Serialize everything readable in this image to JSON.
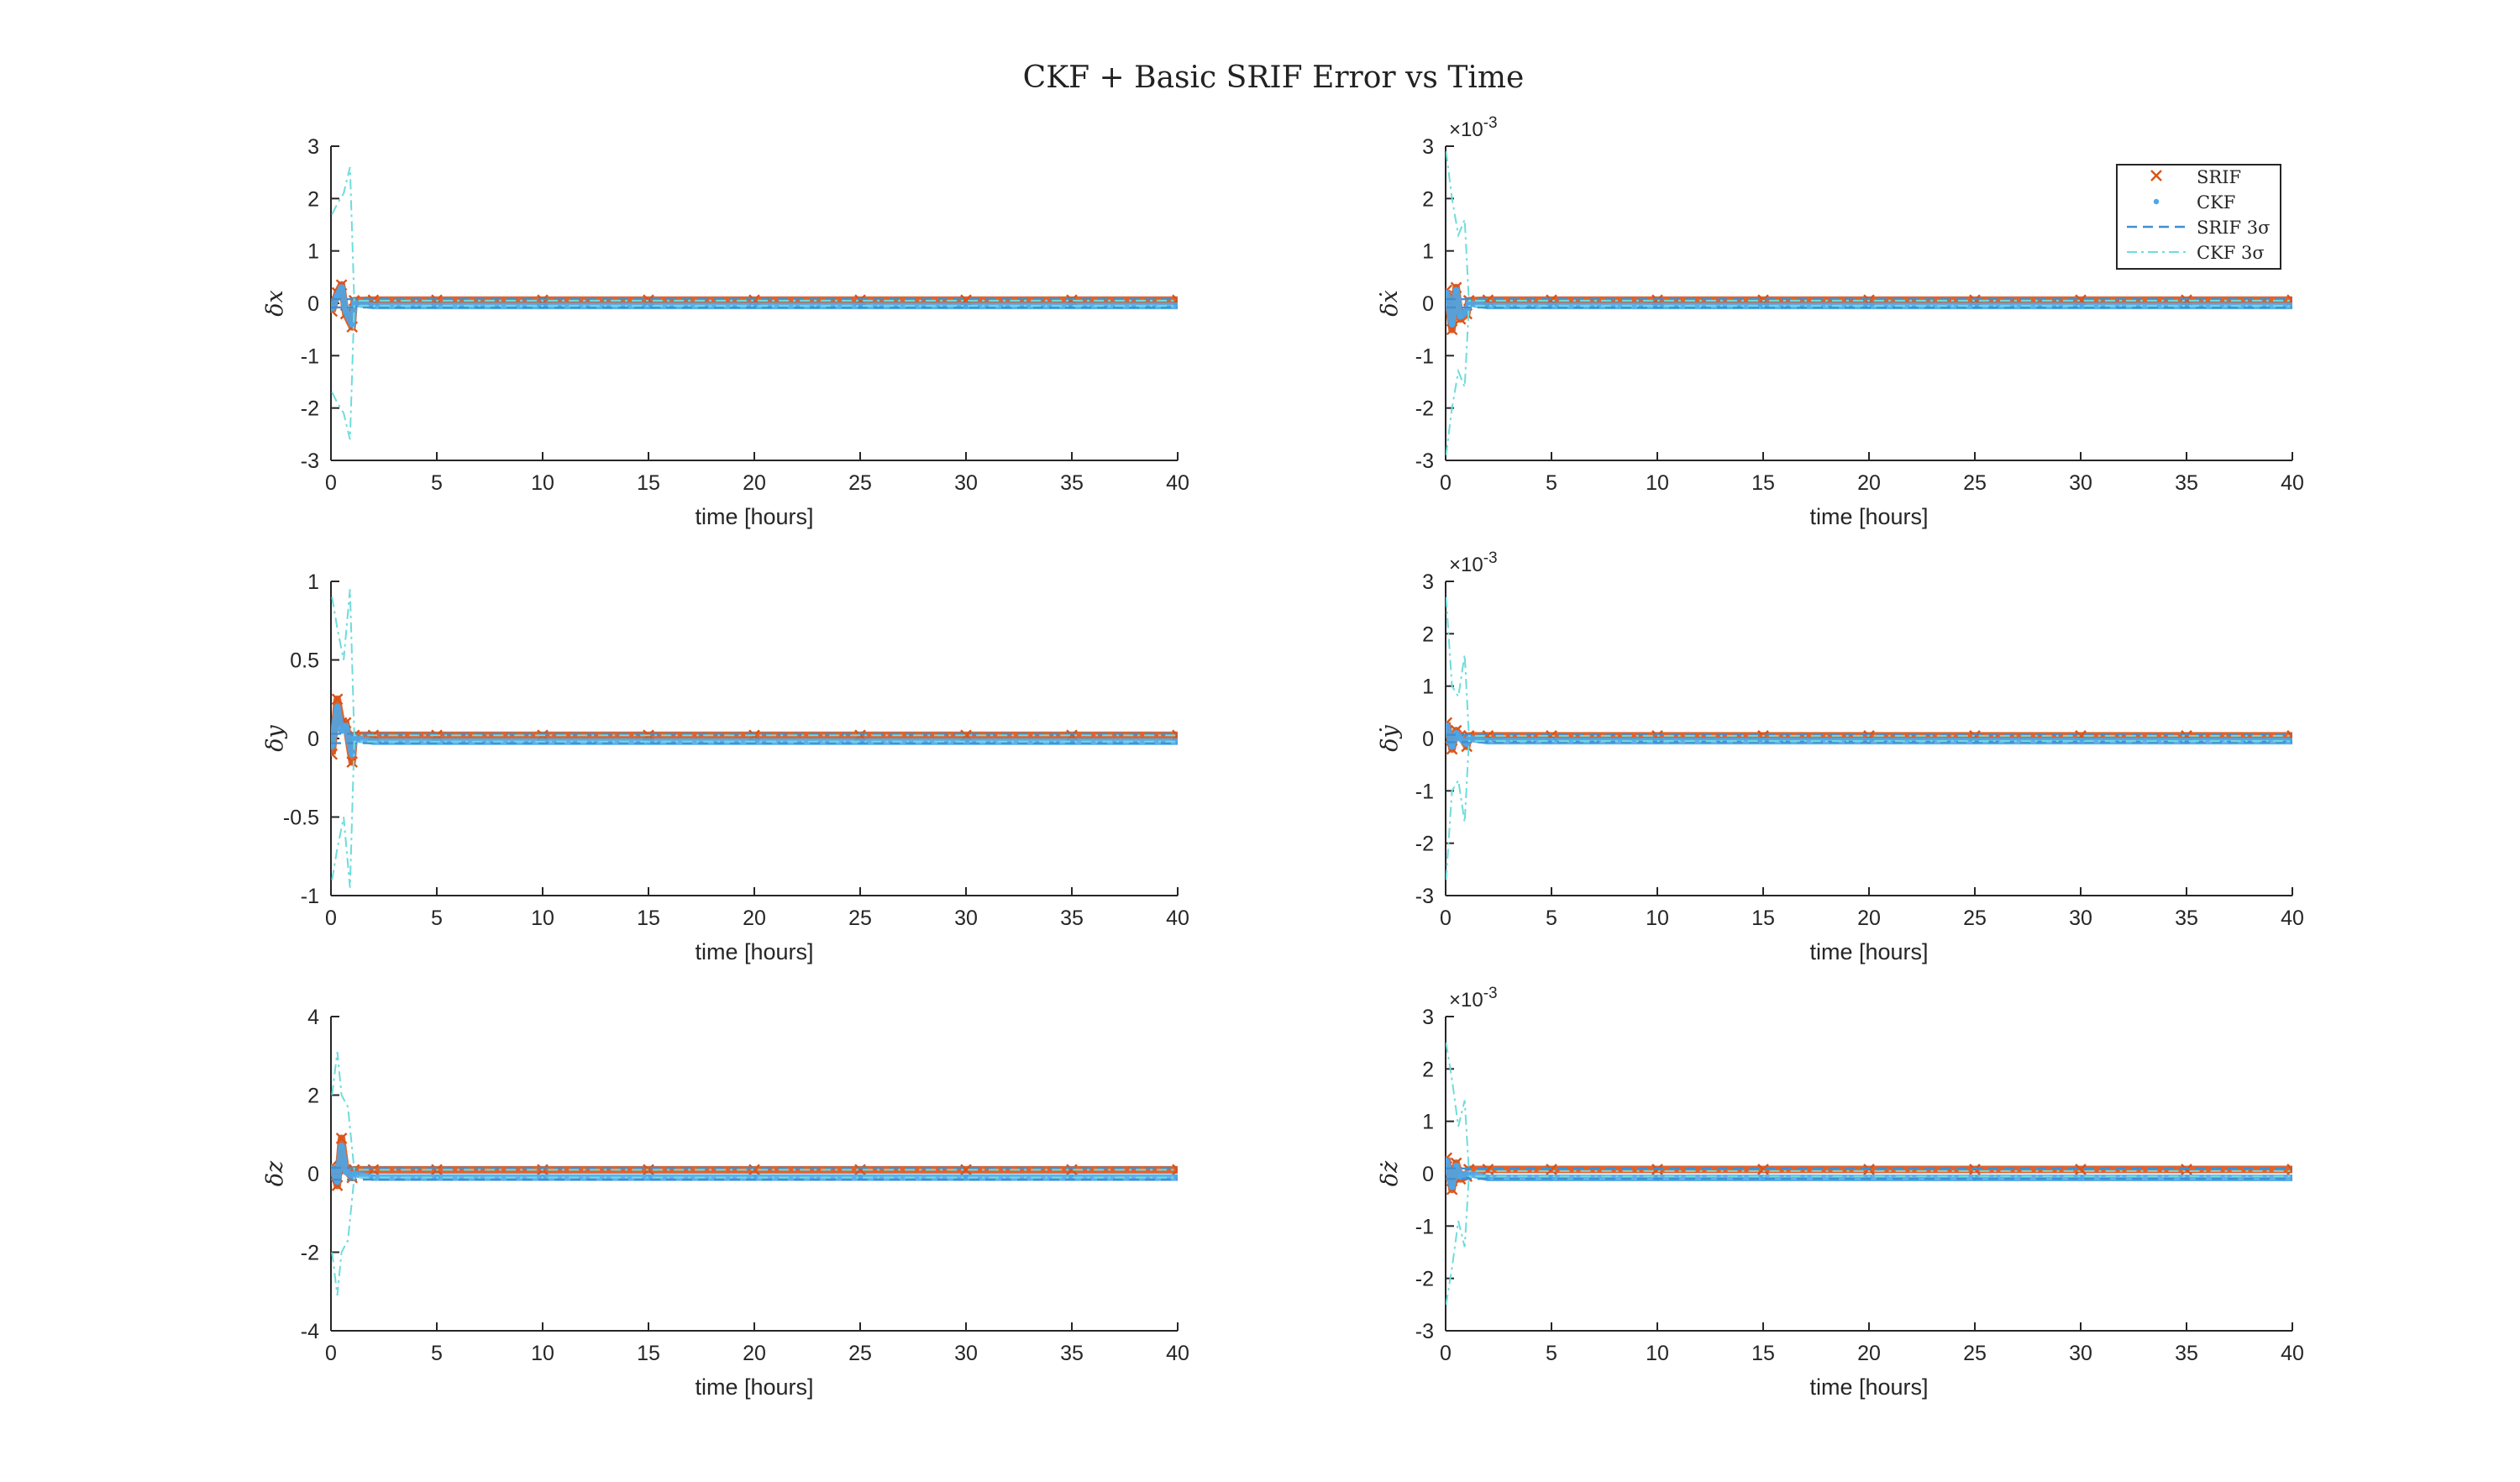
{
  "figure": {
    "title": "CKF + Basic SRIF Error vs Time"
  },
  "legend": {
    "entries": [
      {
        "label": "SRIF",
        "marker": "x",
        "color": "#D95319"
      },
      {
        "label": "CKF",
        "marker": "dot",
        "color": "#4DA6E8"
      },
      {
        "label": "SRIF 3σ",
        "line": "dashed",
        "color": "#3F8FD2"
      },
      {
        "label": "CKF 3σ",
        "line": "dash-dot",
        "color": "#6FDCDC"
      }
    ]
  },
  "chart_data": [
    {
      "type": "scatter",
      "ylabel": "δx",
      "xlabel": "time [hours]",
      "xlim": [
        0,
        40
      ],
      "ylim": [
        -3,
        3
      ],
      "xticks": [
        "0",
        "5",
        "10",
        "15",
        "20",
        "25",
        "30",
        "35",
        "40"
      ],
      "yticks": [
        "-3",
        "-2",
        "-1",
        "0",
        "1",
        "2",
        "3"
      ],
      "exponent": "",
      "series": [
        {
          "name": "SRIF",
          "x": [
            0.05,
            0.3,
            0.5,
            0.7,
            1.0,
            1.1,
            2,
            5,
            10,
            15,
            20,
            25,
            30,
            35,
            40
          ],
          "y": [
            -0.15,
            0.2,
            0.35,
            -0.2,
            -0.45,
            0.05,
            0.06,
            0.06,
            0.06,
            0.06,
            0.06,
            0.06,
            0.06,
            0.06,
            0.06
          ]
        },
        {
          "name": "CKF",
          "x": [
            0.05,
            0.3,
            0.5,
            0.7,
            1.0,
            1.1,
            2,
            5,
            10,
            15,
            20,
            25,
            30,
            35,
            40
          ],
          "y": [
            -0.1,
            0.15,
            0.3,
            -0.15,
            -0.4,
            0.0,
            -0.05,
            -0.05,
            -0.05,
            -0.05,
            -0.05,
            -0.05,
            -0.05,
            -0.05,
            -0.05
          ]
        },
        {
          "name": "SRIF 3σ",
          "x": [
            0,
            1.1,
            40
          ],
          "y": [
            0.08,
            0.08,
            0.08
          ]
        },
        {
          "name": "CKF 3σ",
          "x": [
            0.05,
            0.3,
            0.6,
            0.9,
            1.1,
            40
          ],
          "y": [
            1.7,
            1.9,
            2.1,
            2.6,
            0.05,
            0.05
          ]
        }
      ]
    },
    {
      "type": "scatter",
      "ylabel": "δẋ",
      "xlabel": "time [hours]",
      "xlim": [
        0,
        40
      ],
      "ylim": [
        -3,
        3
      ],
      "xticks": [
        "0",
        "5",
        "10",
        "15",
        "20",
        "25",
        "30",
        "35",
        "40"
      ],
      "yticks": [
        "-3",
        "-2",
        "-1",
        "0",
        "1",
        "2",
        "3"
      ],
      "exponent": "10-3",
      "series": [
        {
          "name": "SRIF",
          "x": [
            0.05,
            0.3,
            0.5,
            0.7,
            1.0,
            1.1,
            2,
            5,
            10,
            15,
            20,
            25,
            30,
            35,
            40
          ],
          "y": [
            0.25,
            -0.5,
            0.3,
            -0.3,
            -0.2,
            0.05,
            0.06,
            0.06,
            0.06,
            0.06,
            0.06,
            0.06,
            0.06,
            0.06,
            0.06
          ]
        },
        {
          "name": "CKF",
          "x": [
            0.05,
            0.3,
            0.5,
            0.7,
            1.0,
            1.1,
            2,
            5,
            10,
            15,
            20,
            25,
            30,
            35,
            40
          ],
          "y": [
            0.2,
            -0.4,
            0.25,
            -0.25,
            -0.15,
            0.0,
            -0.05,
            -0.05,
            -0.05,
            -0.05,
            -0.05,
            -0.05,
            -0.05,
            -0.05,
            -0.05
          ]
        },
        {
          "name": "SRIF 3σ",
          "x": [
            0,
            1.1,
            40
          ],
          "y": [
            0.08,
            0.08,
            0.08
          ]
        },
        {
          "name": "CKF 3σ",
          "x": [
            0.02,
            0.3,
            0.6,
            0.9,
            1.1,
            40
          ],
          "y": [
            2.9,
            2.0,
            1.3,
            1.6,
            0.05,
            0.05
          ]
        }
      ]
    },
    {
      "type": "scatter",
      "ylabel": "δy",
      "xlabel": "time [hours]",
      "xlim": [
        0,
        40
      ],
      "ylim": [
        -1,
        1
      ],
      "xticks": [
        "0",
        "5",
        "10",
        "15",
        "20",
        "25",
        "30",
        "35",
        "40"
      ],
      "yticks": [
        "-1",
        "-0.5",
        "0",
        "0.5",
        "1"
      ],
      "exponent": "",
      "series": [
        {
          "name": "SRIF",
          "x": [
            0.05,
            0.3,
            0.5,
            0.7,
            1.0,
            1.1,
            2,
            5,
            10,
            15,
            20,
            25,
            30,
            35,
            40
          ],
          "y": [
            -0.1,
            0.25,
            0.1,
            0.1,
            -0.15,
            0.02,
            0.02,
            0.02,
            0.02,
            0.02,
            0.02,
            0.02,
            0.02,
            0.02,
            0.02
          ]
        },
        {
          "name": "CKF",
          "x": [
            0.05,
            0.3,
            0.5,
            0.7,
            1.0,
            1.1,
            2,
            5,
            10,
            15,
            20,
            25,
            30,
            35,
            40
          ],
          "y": [
            -0.05,
            0.2,
            0.05,
            0.08,
            -0.1,
            0.0,
            -0.02,
            -0.02,
            -0.02,
            -0.02,
            -0.02,
            -0.02,
            -0.02,
            -0.02,
            -0.02
          ]
        },
        {
          "name": "SRIF 3σ",
          "x": [
            0,
            1.1,
            40
          ],
          "y": [
            0.03,
            0.03,
            0.03
          ]
        },
        {
          "name": "CKF 3σ",
          "x": [
            0.05,
            0.3,
            0.6,
            0.9,
            1.1,
            40
          ],
          "y": [
            0.9,
            0.7,
            0.5,
            0.95,
            0.02,
            0.02
          ]
        }
      ]
    },
    {
      "type": "scatter",
      "ylabel": "δẏ",
      "xlabel": "time [hours]",
      "xlim": [
        0,
        40
      ],
      "ylim": [
        -3,
        3
      ],
      "xticks": [
        "0",
        "5",
        "10",
        "15",
        "20",
        "25",
        "30",
        "35",
        "40"
      ],
      "yticks": [
        "-3",
        "-2",
        "-1",
        "0",
        "1",
        "2",
        "3"
      ],
      "exponent": "10-3",
      "series": [
        {
          "name": "SRIF",
          "x": [
            0.05,
            0.3,
            0.5,
            0.7,
            1.0,
            1.1,
            2,
            5,
            10,
            15,
            20,
            25,
            30,
            35,
            40
          ],
          "y": [
            0.3,
            -0.2,
            0.15,
            0.05,
            -0.15,
            0.05,
            0.05,
            0.05,
            0.05,
            0.05,
            0.05,
            0.05,
            0.05,
            0.05,
            0.05
          ]
        },
        {
          "name": "CKF",
          "x": [
            0.05,
            0.3,
            0.5,
            0.7,
            1.0,
            1.1,
            2,
            5,
            10,
            15,
            20,
            25,
            30,
            35,
            40
          ],
          "y": [
            0.25,
            -0.15,
            0.1,
            0.0,
            -0.1,
            0.0,
            -0.05,
            -0.05,
            -0.05,
            -0.05,
            -0.05,
            -0.05,
            -0.05,
            -0.05,
            -0.05
          ]
        },
        {
          "name": "SRIF 3σ",
          "x": [
            0,
            1.1,
            40
          ],
          "y": [
            0.07,
            0.07,
            0.07
          ]
        },
        {
          "name": "CKF 3σ",
          "x": [
            0.02,
            0.3,
            0.6,
            0.9,
            1.1,
            40
          ],
          "y": [
            2.7,
            1.0,
            0.8,
            1.6,
            0.05,
            0.05
          ]
        }
      ]
    },
    {
      "type": "scatter",
      "ylabel": "δz",
      "xlabel": "time [hours]",
      "xlim": [
        0,
        40
      ],
      "ylim": [
        -4,
        4
      ],
      "xticks": [
        "0",
        "5",
        "10",
        "15",
        "20",
        "25",
        "30",
        "35",
        "40"
      ],
      "yticks": [
        "-4",
        "-2",
        "0",
        "2",
        "4"
      ],
      "exponent": "",
      "series": [
        {
          "name": "SRIF",
          "x": [
            0.05,
            0.3,
            0.5,
            0.7,
            1.0,
            1.1,
            2,
            5,
            10,
            15,
            20,
            25,
            30,
            35,
            40
          ],
          "y": [
            0.2,
            -0.3,
            0.9,
            0.1,
            -0.1,
            0.1,
            0.1,
            0.1,
            0.1,
            0.1,
            0.1,
            0.1,
            0.1,
            0.1,
            0.1
          ]
        },
        {
          "name": "CKF",
          "x": [
            0.05,
            0.3,
            0.5,
            0.7,
            1.0,
            1.1,
            2,
            5,
            10,
            15,
            20,
            25,
            30,
            35,
            40
          ],
          "y": [
            0.15,
            -0.2,
            0.7,
            0.05,
            -0.05,
            0.0,
            -0.1,
            -0.1,
            -0.1,
            -0.1,
            -0.1,
            -0.1,
            -0.1,
            -0.1,
            -0.1
          ]
        },
        {
          "name": "SRIF 3σ",
          "x": [
            0,
            1.1,
            40
          ],
          "y": [
            0.15,
            0.15,
            0.15
          ]
        },
        {
          "name": "CKF 3σ",
          "x": [
            0.05,
            0.3,
            0.5,
            0.8,
            1.1,
            40
          ],
          "y": [
            2.0,
            3.1,
            2.0,
            1.7,
            0.1,
            0.1
          ]
        }
      ]
    },
    {
      "type": "scatter",
      "ylabel": "δż",
      "xlabel": "time [hours]",
      "xlim": [
        0,
        40
      ],
      "ylim": [
        -3,
        3
      ],
      "xticks": [
        "0",
        "5",
        "10",
        "15",
        "20",
        "25",
        "30",
        "35",
        "40"
      ],
      "yticks": [
        "-3",
        "-2",
        "-1",
        "0",
        "1",
        "2",
        "3"
      ],
      "exponent": "10-3",
      "series": [
        {
          "name": "SRIF",
          "x": [
            0.05,
            0.3,
            0.5,
            0.7,
            1.0,
            1.1,
            2,
            5,
            10,
            15,
            20,
            25,
            30,
            35,
            40
          ],
          "y": [
            0.3,
            -0.3,
            0.2,
            -0.1,
            -0.05,
            0.08,
            0.08,
            0.08,
            0.08,
            0.08,
            0.08,
            0.08,
            0.08,
            0.08,
            0.08
          ]
        },
        {
          "name": "CKF",
          "x": [
            0.05,
            0.3,
            0.5,
            0.7,
            1.0,
            1.1,
            2,
            5,
            10,
            15,
            20,
            25,
            30,
            35,
            40
          ],
          "y": [
            0.25,
            -0.25,
            0.15,
            -0.05,
            0.0,
            0.0,
            -0.08,
            -0.08,
            -0.08,
            -0.08,
            -0.08,
            -0.08,
            -0.08,
            -0.08,
            -0.08
          ]
        },
        {
          "name": "SRIF 3σ",
          "x": [
            0,
            1.1,
            40
          ],
          "y": [
            0.1,
            0.1,
            0.1
          ]
        },
        {
          "name": "CKF 3σ",
          "x": [
            0.02,
            0.3,
            0.6,
            0.9,
            1.1,
            40
          ],
          "y": [
            2.5,
            1.8,
            0.9,
            1.4,
            0.05,
            0.05
          ]
        }
      ]
    }
  ]
}
